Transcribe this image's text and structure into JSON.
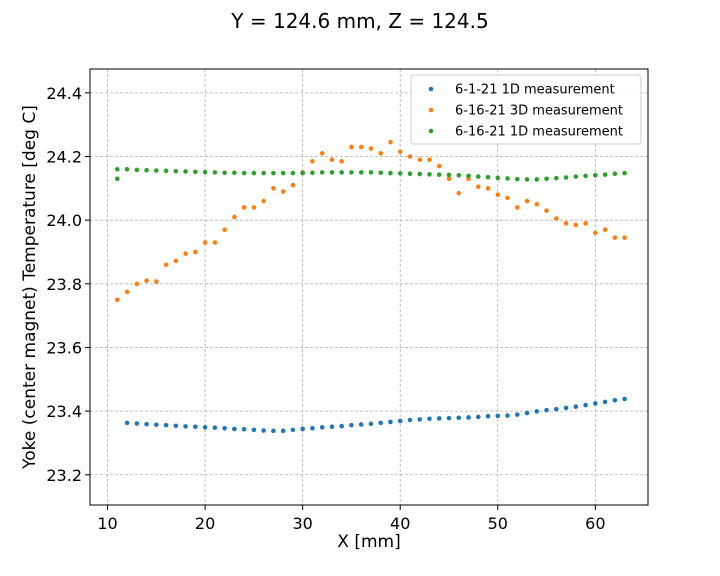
{
  "chart_data": {
    "type": "scatter",
    "title": "Y = 124.6 mm, Z = 124.5",
    "xlabel": "X [mm]",
    "ylabel": "Yoke (center magnet) Temperature [deg C]",
    "xlim": [
      8.2,
      65.4
    ],
    "ylim": [
      23.105,
      24.475
    ],
    "xticks": [
      10,
      20,
      30,
      40,
      50,
      60
    ],
    "yticks": [
      23.2,
      23.4,
      23.6,
      23.8,
      24.0,
      24.2,
      24.4
    ],
    "ytick_labels": [
      "23.2",
      "23.4",
      "23.6",
      "23.8",
      "24.0",
      "24.2",
      "24.4"
    ],
    "grid": true,
    "legend_position": "top-right",
    "series": [
      {
        "name": "6-1-21 1D measurement",
        "color": "#1f77b4",
        "x": [
          12.0,
          13.0,
          14.0,
          15.0,
          16.0,
          17.0,
          18.0,
          19.0,
          20.0,
          21.0,
          22.0,
          23.0,
          24.0,
          25.0,
          26.0,
          27.0,
          28.0,
          29.0,
          30.0,
          31.0,
          32.0,
          33.0,
          34.0,
          35.0,
          36.0,
          37.0,
          38.0,
          39.0,
          40.0,
          41.0,
          42.0,
          43.0,
          44.0,
          45.0,
          46.0,
          47.0,
          48.0,
          49.0,
          50.0,
          51.0,
          52.0,
          53.0,
          54.0,
          55.0,
          56.0,
          57.0,
          58.0,
          59.0,
          60.0,
          61.0,
          62.0,
          63.0
        ],
        "y": [
          23.363,
          23.361,
          23.359,
          23.357,
          23.356,
          23.354,
          23.352,
          23.351,
          23.349,
          23.348,
          23.346,
          23.344,
          23.343,
          23.341,
          23.339,
          23.338,
          23.338,
          23.341,
          23.344,
          23.346,
          23.349,
          23.351,
          23.353,
          23.356,
          23.358,
          23.36,
          23.363,
          23.366,
          23.369,
          23.372,
          23.374,
          23.376,
          23.377,
          23.378,
          23.379,
          23.38,
          23.382,
          23.384,
          23.385,
          23.386,
          23.389,
          23.394,
          23.399,
          23.403,
          23.406,
          23.41,
          23.414,
          23.419,
          23.424,
          23.429,
          23.434,
          23.438
        ]
      },
      {
        "name": "6-16-21 3D measurement",
        "color": "#ff7f0e",
        "x": [
          11.0,
          12.0,
          13.0,
          14.0,
          15.0,
          16.0,
          17.0,
          18.0,
          19.0,
          20.0,
          21.0,
          22.0,
          23.0,
          24.0,
          25.0,
          26.0,
          27.0,
          28.0,
          29.0,
          30.0,
          31.0,
          32.0,
          33.0,
          34.0,
          35.0,
          36.0,
          37.0,
          38.0,
          39.0,
          40.0,
          41.0,
          42.0,
          43.0,
          44.0,
          45.0,
          46.0,
          47.0,
          48.0,
          49.0,
          50.0,
          51.0,
          52.0,
          53.0,
          54.0,
          55.0,
          56.0,
          57.0,
          58.0,
          59.0,
          60.0,
          61.0,
          62.0,
          63.0
        ],
        "y": [
          23.75,
          23.775,
          23.8,
          23.81,
          23.807,
          23.86,
          23.872,
          23.895,
          23.9,
          23.93,
          23.93,
          23.97,
          24.01,
          24.04,
          24.04,
          24.06,
          24.1,
          24.09,
          24.11,
          24.15,
          24.185,
          24.21,
          24.19,
          24.185,
          24.23,
          24.23,
          24.225,
          24.21,
          24.245,
          24.215,
          24.2,
          24.19,
          24.19,
          24.17,
          24.13,
          24.085,
          24.13,
          24.105,
          24.1,
          24.08,
          24.07,
          24.04,
          24.06,
          24.05,
          24.03,
          24.005,
          23.99,
          23.985,
          23.99,
          23.96,
          23.97,
          23.945,
          23.945
        ]
      },
      {
        "name": "6-16-21 1D measurement",
        "color": "#2ca02c",
        "x": [
          11.0,
          11.0,
          12.0,
          13.0,
          14.0,
          15.0,
          16.0,
          17.0,
          18.0,
          19.0,
          20.0,
          21.0,
          22.0,
          23.0,
          24.0,
          25.0,
          26.0,
          27.0,
          28.0,
          29.0,
          30.0,
          31.0,
          32.0,
          33.0,
          34.0,
          35.0,
          36.0,
          37.0,
          38.0,
          39.0,
          40.0,
          41.0,
          42.0,
          43.0,
          44.0,
          45.0,
          46.0,
          47.0,
          48.0,
          49.0,
          50.0,
          51.0,
          52.0,
          53.0,
          54.0,
          55.0,
          56.0,
          57.0,
          58.0,
          59.0,
          60.0,
          61.0,
          62.0,
          63.0
        ],
        "y": [
          24.16,
          24.13,
          24.16,
          24.158,
          24.157,
          24.156,
          24.155,
          24.154,
          24.153,
          24.152,
          24.151,
          24.15,
          24.149,
          24.149,
          24.148,
          24.148,
          24.148,
          24.148,
          24.148,
          24.148,
          24.148,
          24.149,
          24.15,
          24.15,
          24.15,
          24.15,
          24.15,
          24.15,
          24.149,
          24.148,
          24.147,
          24.146,
          24.145,
          24.144,
          24.143,
          24.142,
          24.141,
          24.139,
          24.137,
          24.135,
          24.133,
          24.131,
          24.129,
          24.128,
          24.128,
          24.13,
          24.132,
          24.134,
          24.137,
          24.139,
          24.141,
          24.143,
          24.146,
          24.148
        ]
      }
    ]
  }
}
